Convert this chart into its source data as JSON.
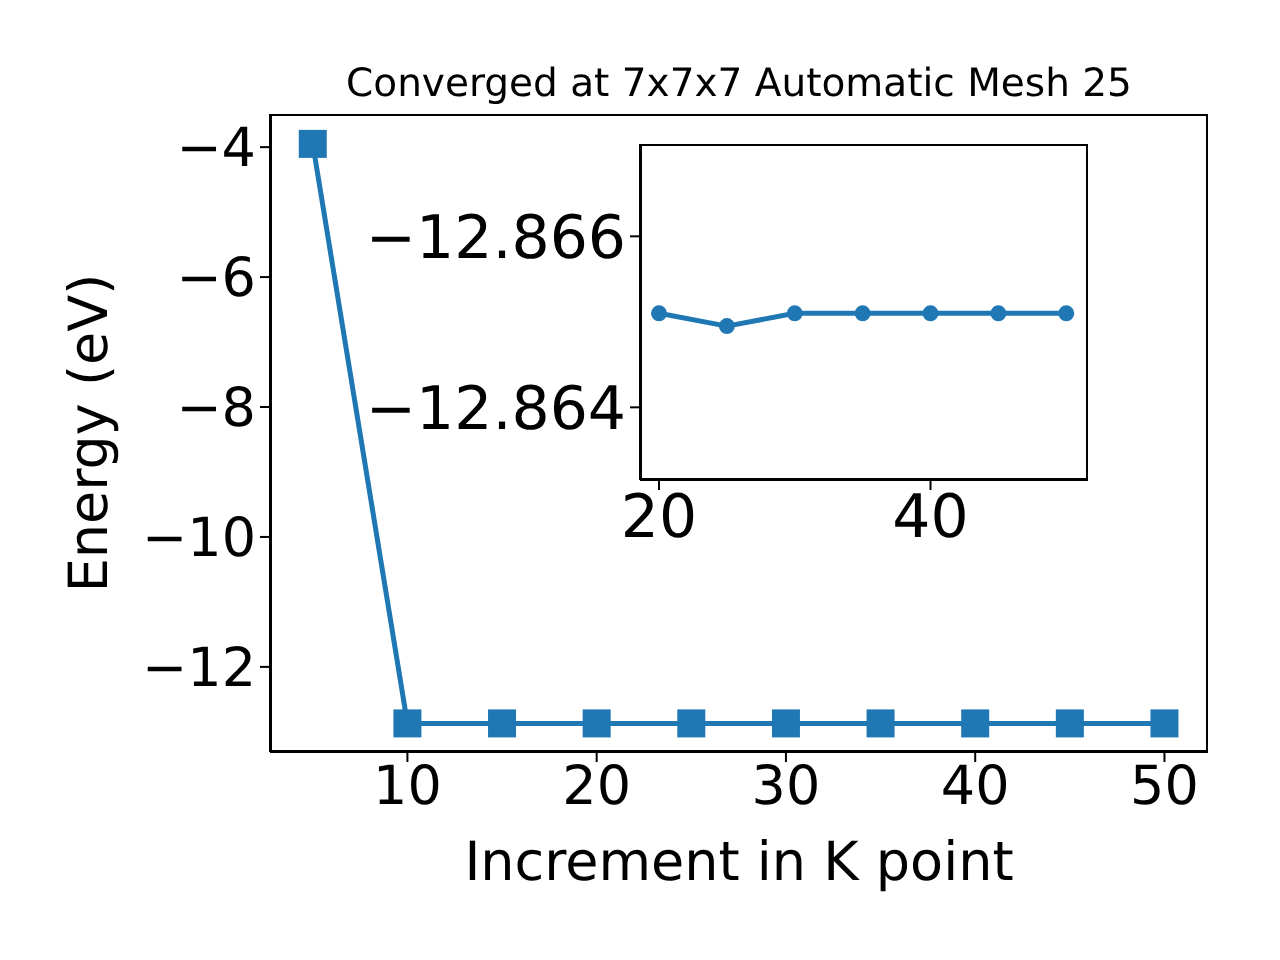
{
  "chart_data": [
    {
      "type": "line",
      "title": "Converged at 7x7x7 Automatic Mesh 25",
      "xlabel": "Increment in K point",
      "ylabel": "Energy (eV)",
      "x": [
        5,
        10,
        15,
        20,
        25,
        30,
        35,
        40,
        45,
        50
      ],
      "series": [
        {
          "color": "#1f77b4",
          "values": [
            -3.95,
            -12.87,
            -12.87,
            -12.87,
            -12.87,
            -12.87,
            -12.87,
            -12.87,
            -12.87,
            -12.87
          ]
        }
      ],
      "marker": "square",
      "line_style": "solid",
      "xlim": [
        2.74,
        52.3
      ],
      "ylim": [
        -13.31,
        -3.49
      ],
      "xticks": [
        10,
        20,
        30,
        40,
        50
      ],
      "yticks": [
        {
          "value": -4,
          "label": "−4"
        },
        {
          "value": -6,
          "label": "−6"
        },
        {
          "value": -8,
          "label": "−8"
        },
        {
          "value": -10,
          "label": "−10"
        },
        {
          "value": -12,
          "label": "−12"
        }
      ]
    },
    {
      "type": "line",
      "x": [
        20,
        25,
        30,
        35,
        40,
        45,
        50
      ],
      "series": [
        {
          "color": "#1f77b4",
          "values": [
            -12.8651,
            -12.86495,
            -12.8651,
            -12.8651,
            -12.8651,
            -12.8651,
            -12.8651
          ]
        }
      ],
      "marker": "circle",
      "line_style": "solid",
      "xlim": [
        18.6,
        51.6
      ],
      "ylim": [
        -12.86315,
        -12.86708
      ],
      "xticks": [
        20,
        40
      ],
      "yticks": [
        {
          "value": -12.866,
          "label": "−12.866"
        },
        {
          "value": -12.864,
          "label": "−12.864"
        }
      ]
    }
  ]
}
